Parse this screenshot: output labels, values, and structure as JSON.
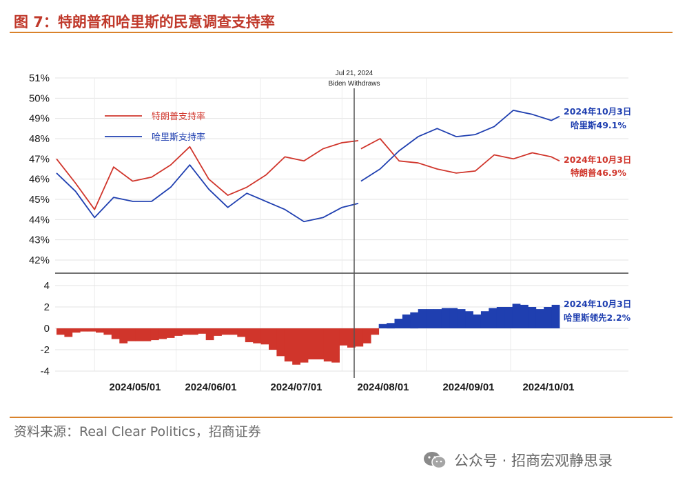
{
  "figure": {
    "title": "图 7：特朗普和哈里斯的民意调查支持率",
    "source": "资料来源：Real Clear Politics，招商证券",
    "watermark": "公众号 · 招商宏观静思录"
  },
  "colors": {
    "trump": "#d0352b",
    "harris": "#1f3fb0",
    "accent": "#d9822b",
    "event_line": "#555555"
  },
  "chart_data": [
    {
      "type": "line",
      "x_dates": [
        "2024-04-01",
        "2024-04-08",
        "2024-04-15",
        "2024-04-22",
        "2024-04-29",
        "2024-05-06",
        "2024-05-13",
        "2024-05-20",
        "2024-05-27",
        "2024-06-03",
        "2024-06-10",
        "2024-06-17",
        "2024-06-24",
        "2024-07-01",
        "2024-07-08",
        "2024-07-15",
        "2024-07-21",
        "2024-07-22",
        "2024-07-29",
        "2024-08-05",
        "2024-08-12",
        "2024-08-19",
        "2024-08-26",
        "2024-09-02",
        "2024-09-09",
        "2024-09-16",
        "2024-09-23",
        "2024-09-30",
        "2024-10-03"
      ],
      "xtick_labels": [
        "2024/05/01",
        "2024/06/01",
        "2024/07/01",
        "2024/08/01",
        "2024/09/01",
        "2024/10/01"
      ],
      "ytick_labels": [
        "42%",
        "43%",
        "44%",
        "45%",
        "46%",
        "47%",
        "48%",
        "49%",
        "50%",
        "51%"
      ],
      "ylim": [
        42,
        51
      ],
      "series": [
        {
          "name": "特朗普支持率",
          "values": [
            47.0,
            45.8,
            44.5,
            46.6,
            45.9,
            46.1,
            46.7,
            47.6,
            46.0,
            45.2,
            45.6,
            46.2,
            47.1,
            46.9,
            47.5,
            47.8,
            47.9,
            47.5,
            48.0,
            46.9,
            46.8,
            46.5,
            46.3,
            46.4,
            47.2,
            47.0,
            47.3,
            47.1,
            46.9
          ]
        },
        {
          "name": "哈里斯支持率",
          "values": [
            46.3,
            45.4,
            44.1,
            45.1,
            44.9,
            44.9,
            45.6,
            46.7,
            45.5,
            44.6,
            45.3,
            44.9,
            44.5,
            43.9,
            44.1,
            44.6,
            44.8,
            45.9,
            46.5,
            47.4,
            48.1,
            48.5,
            48.1,
            48.2,
            48.6,
            49.4,
            49.2,
            48.9,
            49.1
          ]
        }
      ],
      "event": {
        "date": "2024-07-21",
        "label_line1": "Jul 21, 2024",
        "label_line2": "Biden Withdraws"
      },
      "end_labels": {
        "harris_line1": "2024年10月3日",
        "harris_line2": "哈里斯49.1%",
        "trump_line1": "2024年10月3日",
        "trump_line2": "特朗普46.9%"
      },
      "legend_position": "top-left",
      "grid": true
    },
    {
      "type": "bar",
      "ytick_labels": [
        "-4",
        "-2",
        "0",
        "2",
        "4"
      ],
      "ylim": [
        -4,
        5
      ],
      "values": [
        -0.6,
        -0.8,
        -0.4,
        -0.3,
        -0.3,
        -0.4,
        -0.6,
        -1.0,
        -1.4,
        -1.2,
        -1.2,
        -1.2,
        -1.1,
        -1.0,
        -0.9,
        -0.7,
        -0.6,
        -0.6,
        -0.5,
        -1.1,
        -0.7,
        -0.6,
        -0.6,
        -0.8,
        -1.3,
        -1.4,
        -1.5,
        -2.0,
        -2.6,
        -3.1,
        -3.4,
        -3.2,
        -2.9,
        -2.9,
        -3.1,
        -3.2,
        -1.6,
        -1.8,
        -1.7,
        -1.4,
        -0.6,
        0.4,
        0.5,
        0.9,
        1.3,
        1.5,
        1.8,
        1.8,
        1.8,
        1.9,
        1.9,
        1.8,
        1.6,
        1.3,
        1.6,
        1.9,
        2.0,
        2.0,
        2.3,
        2.2,
        2.0,
        1.8,
        2.0,
        2.2
      ],
      "series_colors_by_sign": {
        "negative": "#d0352b",
        "positive": "#1f3fb0"
      },
      "end_label_line1": "2024年10月3日",
      "end_label_line2": "哈里斯领先2.2%",
      "grid": true
    }
  ]
}
